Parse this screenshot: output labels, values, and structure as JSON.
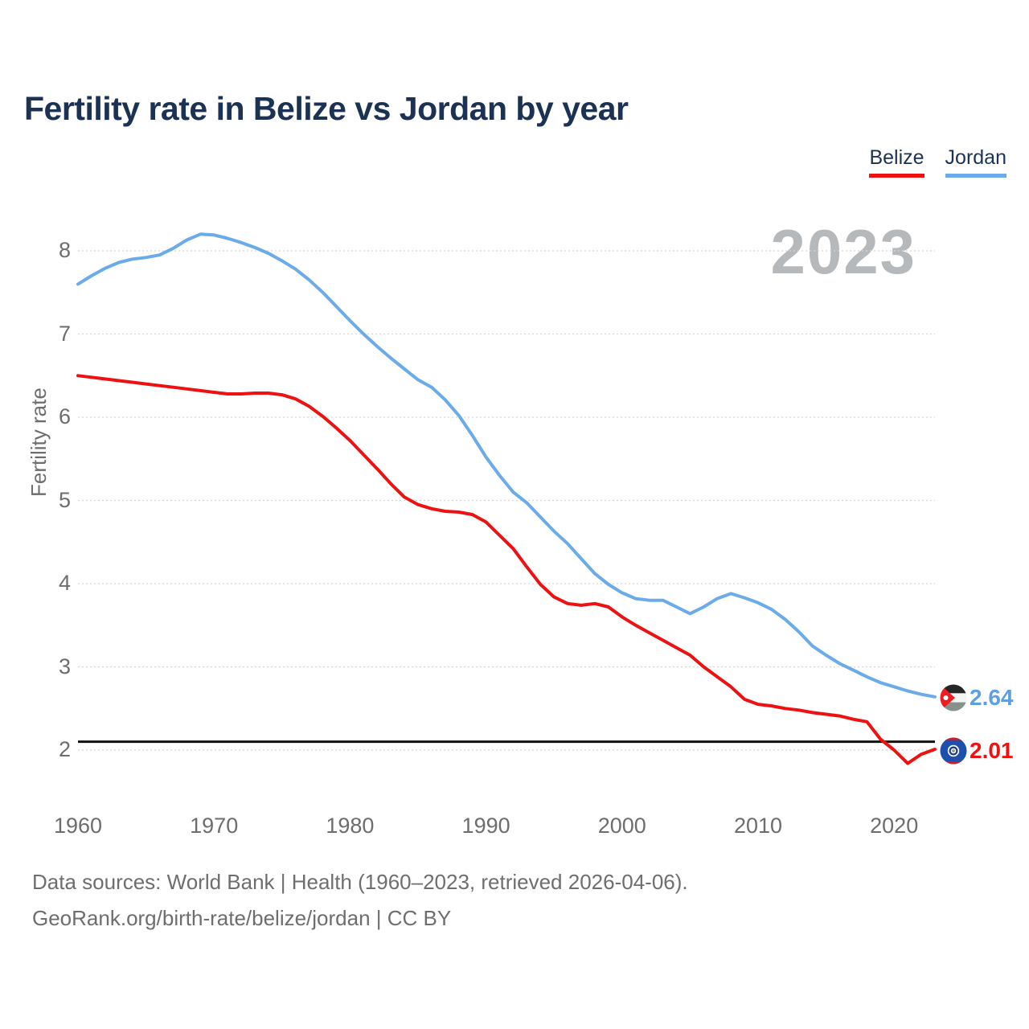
{
  "title": "Fertility rate in Belize vs Jordan by year",
  "watermark": "2023",
  "legend": {
    "items": [
      {
        "label": "Belize",
        "color": "#ee1111"
      },
      {
        "label": "Jordan",
        "color": "#6babea"
      }
    ]
  },
  "axes": {
    "ylabel": "Fertility rate",
    "yticks": [
      8,
      7,
      6,
      5,
      4,
      3,
      2
    ],
    "xticks": [
      1960,
      1970,
      1980,
      1990,
      2000,
      2010,
      2020
    ]
  },
  "end_labels": {
    "jordan": {
      "value": "2.64",
      "color": "#5f9fdf"
    },
    "belize": {
      "value": "2.01",
      "color": "#ee1111"
    }
  },
  "footer": {
    "line1": "Data sources: World Bank | Health (1960–2023, retrieved 2026-04-06).",
    "line2": "GeoRank.org/birth-rate/belize/jordan | CC BY"
  },
  "chart_data": {
    "type": "line",
    "title": "Fertility rate in Belize vs Jordan by year",
    "xlabel": "",
    "ylabel": "Fertility rate",
    "ylim": [
      1.8,
      8.4
    ],
    "xlim": [
      1960,
      2023
    ],
    "grid": true,
    "baseline": 2.1,
    "x": [
      1960,
      1961,
      1962,
      1963,
      1964,
      1965,
      1966,
      1967,
      1968,
      1969,
      1970,
      1971,
      1972,
      1973,
      1974,
      1975,
      1976,
      1977,
      1978,
      1979,
      1980,
      1981,
      1982,
      1983,
      1984,
      1985,
      1986,
      1987,
      1988,
      1989,
      1990,
      1991,
      1992,
      1993,
      1994,
      1995,
      1996,
      1997,
      1998,
      1999,
      2000,
      2001,
      2002,
      2003,
      2004,
      2005,
      2006,
      2007,
      2008,
      2009,
      2010,
      2011,
      2012,
      2013,
      2014,
      2015,
      2016,
      2017,
      2018,
      2019,
      2020,
      2021,
      2022,
      2023
    ],
    "series": [
      {
        "name": "Belize",
        "color": "#ee1111",
        "values": [
          6.5,
          6.48,
          6.46,
          6.44,
          6.42,
          6.4,
          6.38,
          6.36,
          6.34,
          6.32,
          6.3,
          6.28,
          6.28,
          6.29,
          6.29,
          6.27,
          6.22,
          6.13,
          6.01,
          5.87,
          5.72,
          5.55,
          5.38,
          5.2,
          5.04,
          4.95,
          4.9,
          4.87,
          4.86,
          4.83,
          4.74,
          4.58,
          4.42,
          4.2,
          3.99,
          3.84,
          3.76,
          3.74,
          3.76,
          3.72,
          3.6,
          3.5,
          3.41,
          3.32,
          3.23,
          3.14,
          3.0,
          2.88,
          2.76,
          2.61,
          2.55,
          2.53,
          2.5,
          2.48,
          2.45,
          2.43,
          2.41,
          2.37,
          2.34,
          2.13,
          2.0,
          1.84,
          1.95,
          2.01
        ]
      },
      {
        "name": "Jordan",
        "color": "#6babea",
        "values": [
          7.6,
          7.7,
          7.79,
          7.86,
          7.9,
          7.92,
          7.95,
          8.03,
          8.13,
          8.2,
          8.19,
          8.15,
          8.1,
          8.04,
          7.97,
          7.88,
          7.78,
          7.65,
          7.5,
          7.33,
          7.16,
          7.0,
          6.85,
          6.71,
          6.58,
          6.45,
          6.36,
          6.21,
          6.02,
          5.78,
          5.52,
          5.3,
          5.1,
          4.97,
          4.8,
          4.63,
          4.48,
          4.3,
          4.12,
          3.99,
          3.89,
          3.82,
          3.8,
          3.8,
          3.72,
          3.64,
          3.72,
          3.82,
          3.88,
          3.83,
          3.77,
          3.69,
          3.57,
          3.42,
          3.25,
          3.14,
          3.04,
          2.96,
          2.88,
          2.81,
          2.76,
          2.71,
          2.67,
          2.64
        ]
      }
    ]
  }
}
